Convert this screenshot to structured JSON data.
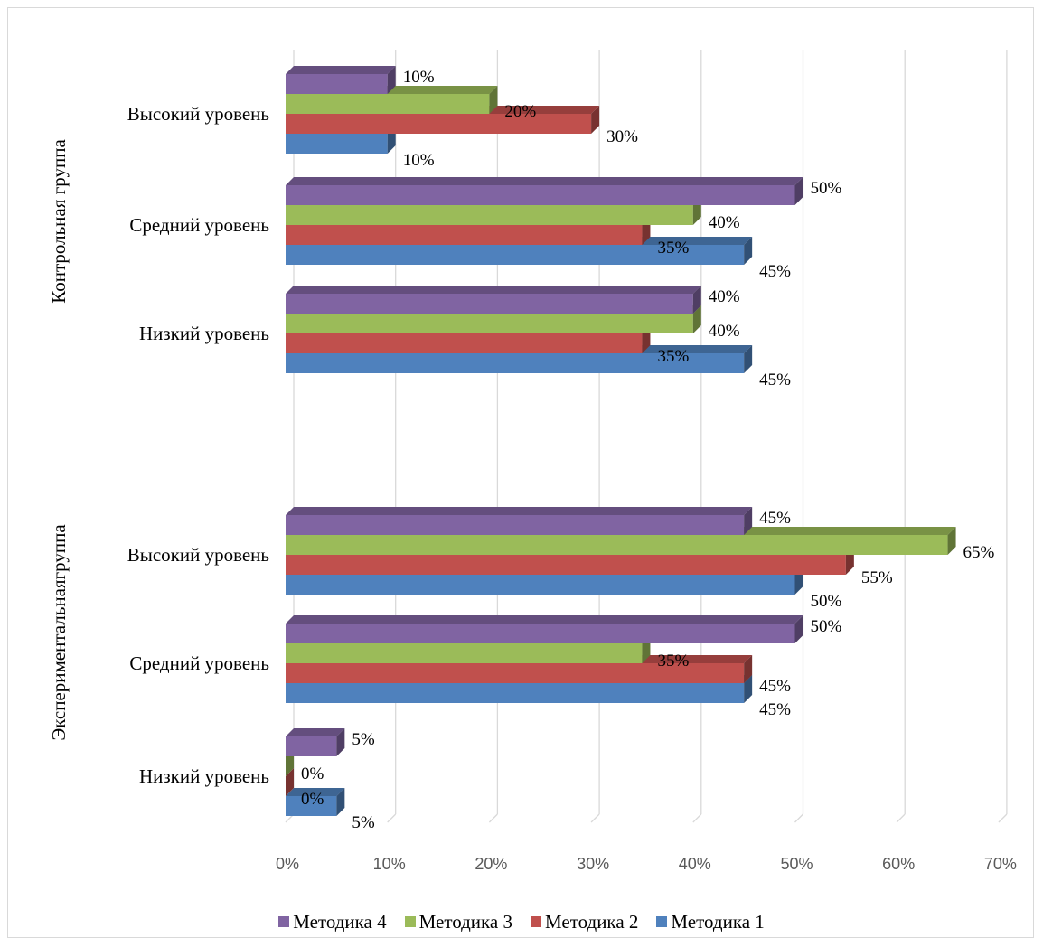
{
  "chart_data": {
    "type": "bar",
    "orientation": "horizontal",
    "style": "3d",
    "xlim": [
      0,
      70
    ],
    "x_ticks": [
      "0%",
      "10%",
      "20%",
      "30%",
      "40%",
      "50%",
      "60%",
      "70%"
    ],
    "grid": true,
    "legend_position": "bottom",
    "groups": [
      {
        "name": "Контрольная группа",
        "categories": [
          "Высокий уровень",
          "Средний уровень",
          "Низкий уровень"
        ]
      },
      {
        "name": "Экспериментальнаягруппа",
        "categories": [
          "Высокий уровень",
          "Средний уровень",
          "Низкий уровень"
        ]
      }
    ],
    "series": [
      {
        "name": "Методика 4",
        "color": "#8064a2",
        "values": [
          [
            10,
            50,
            40
          ],
          [
            45,
            50,
            5
          ]
        ],
        "labels": [
          [
            "10%",
            "50%",
            "40%"
          ],
          [
            "45%",
            "50%",
            "5%"
          ]
        ]
      },
      {
        "name": "Методика 3",
        "color": "#9bbb59",
        "values": [
          [
            20,
            40,
            40
          ],
          [
            65,
            35,
            0
          ]
        ],
        "labels": [
          [
            "20%",
            "40%",
            "40%"
          ],
          [
            "65%",
            "35%",
            "0%"
          ]
        ]
      },
      {
        "name": "Методика 2",
        "color": "#c0504d",
        "values": [
          [
            30,
            35,
            35
          ],
          [
            55,
            45,
            0
          ]
        ],
        "labels": [
          [
            "30%",
            "35%",
            "35%"
          ],
          [
            "55%",
            "45%",
            "0%"
          ]
        ]
      },
      {
        "name": "Методика 1",
        "color": "#4f81bd",
        "values": [
          [
            10,
            45,
            45
          ],
          [
            50,
            45,
            5
          ]
        ],
        "labels": [
          [
            "10%",
            "45%",
            "45%"
          ],
          [
            "50%",
            "45%",
            "5%"
          ]
        ]
      }
    ]
  }
}
